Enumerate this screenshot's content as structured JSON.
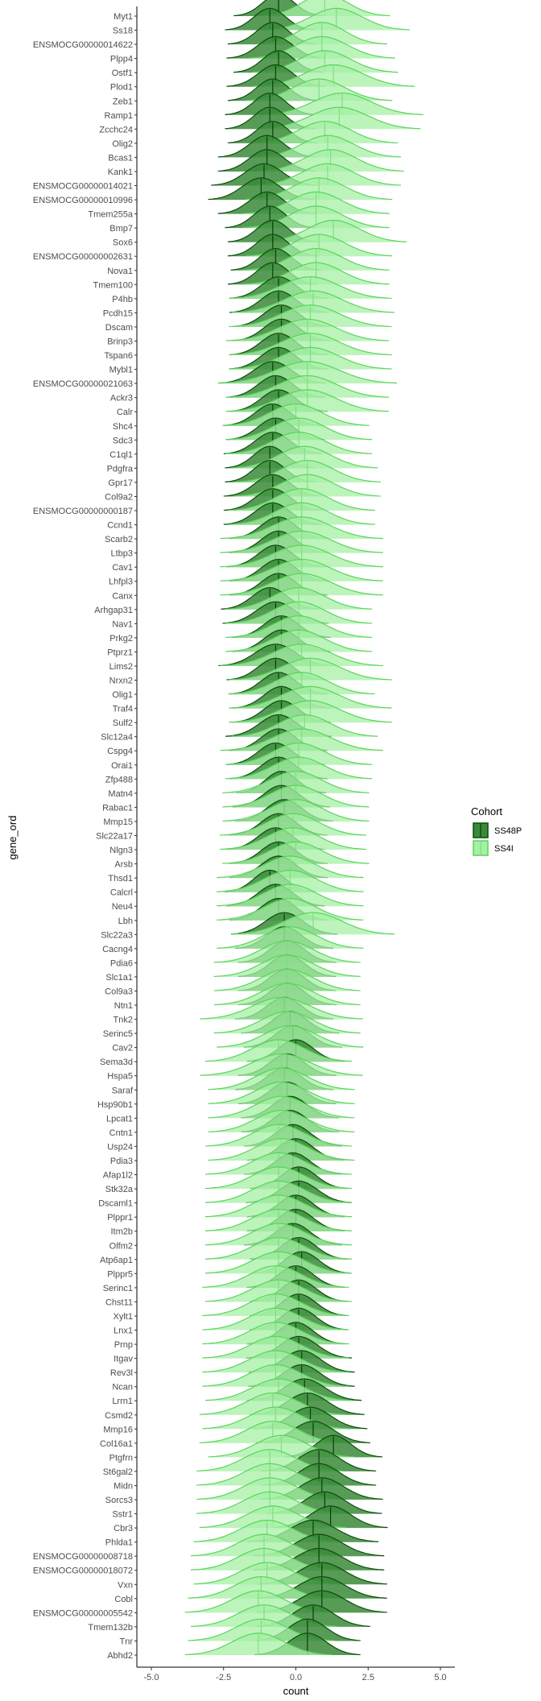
{
  "chart_data": {
    "type": "ridgeline",
    "xlabel": "count",
    "ylabel": "gene_ord",
    "xlim": [
      -5.5,
      5.5
    ],
    "x_ticks": [
      "-5.0",
      "-2.5",
      "0.0",
      "2.5",
      "5.0"
    ],
    "x_tick_values": [
      -5.0,
      -2.5,
      0.0,
      2.5,
      5.0
    ],
    "grid": false,
    "legend": {
      "title": "Cohort",
      "placement": "right",
      "entries": [
        {
          "name": "SS48P",
          "fill": "#3a8a3a",
          "line": "#0b4d0b"
        },
        {
          "name": "SS4I",
          "fill": "#a6f0a6",
          "line": "#5ad45a"
        }
      ]
    },
    "categories": [
      "Myt1",
      "Ss18",
      "ENSMOCG00000014622",
      "Plpp4",
      "Ostf1",
      "Plod1",
      "Zeb1",
      "Ramp1",
      "Zcchc24",
      "Olig2",
      "Bcas1",
      "Kank1",
      "ENSMOCG00000014021",
      "ENSMOCG00000010996",
      "Tmem255a",
      "Bmp7",
      "Sox6",
      "ENSMOCG00000002631",
      "Nova1",
      "Tmem100",
      "P4hb",
      "Pcdh15",
      "Dscam",
      "Brinp3",
      "Tspan6",
      "Mybl1",
      "ENSMOCG00000021063",
      "Ackr3",
      "Calr",
      "Shc4",
      "Sdc3",
      "C1ql1",
      "Pdgfra",
      "Gpr17",
      "Col9a2",
      "ENSMOCG00000000187",
      "Ccnd1",
      "Scarb2",
      "Ltbp3",
      "Cav1",
      "Lhfpl3",
      "Canx",
      "Arhgap31",
      "Nav1",
      "Prkg2",
      "Ptprz1",
      "Lims2",
      "Nrxn2",
      "Olig1",
      "Traf4",
      "Sulf2",
      "Slc12a4",
      "Cspg4",
      "Orai1",
      "Zfp488",
      "Matn4",
      "Rabac1",
      "Mmp15",
      "Slc22a17",
      "Nlgn3",
      "Arsb",
      "Thsd1",
      "Calcrl",
      "Neu4",
      "Lbh",
      "Slc22a3",
      "Cacng4",
      "Pdia6",
      "Slc1a1",
      "Col9a3",
      "Ntn1",
      "Tnk2",
      "Serinc5",
      "Cav2",
      "Sema3d",
      "Hspa5",
      "Saraf",
      "Hsp90b1",
      "Lpcat1",
      "Cntn1",
      "Usp24",
      "Pdia3",
      "Afap1l2",
      "Stk32a",
      "Dscaml1",
      "Plppr1",
      "Itm2b",
      "Olfm2",
      "Atp6ap1",
      "Plppr5",
      "Serinc1",
      "Chst11",
      "Xylt1",
      "Lnx1",
      "Prnp",
      "Itgav",
      "Rev3l",
      "Ncan",
      "Lrrn1",
      "Csmd2",
      "Mmp16",
      "Col16a1",
      "Ptgfrn",
      "St6gal2",
      "Midn",
      "Sorcs3",
      "Sstr1",
      "Cbr3",
      "Phlda1",
      "ENSMOCG00000008718",
      "ENSMOCG00000018072",
      "Vxn",
      "Cobl",
      "ENSMOCG00000005542",
      "Tmem132b",
      "Tnr",
      "Abhd2"
    ],
    "series": [
      {
        "name": "SS48P",
        "means": [
          -0.6,
          -0.9,
          -0.8,
          -0.7,
          -0.6,
          -0.7,
          -0.8,
          -0.9,
          -0.9,
          -0.8,
          -1.0,
          -1.0,
          -1.1,
          -1.2,
          -1.0,
          -0.9,
          -0.8,
          -0.8,
          -0.7,
          -0.8,
          -0.6,
          -0.6,
          -0.5,
          -0.5,
          -0.6,
          -0.6,
          -0.8,
          -0.7,
          -0.6,
          -0.8,
          -0.7,
          -0.8,
          -0.9,
          -0.9,
          -0.8,
          -0.8,
          -0.8,
          -0.6,
          -0.6,
          -0.7,
          -0.6,
          -0.6,
          -0.9,
          -0.7,
          -0.5,
          -0.5,
          -0.7,
          -0.7,
          -0.6,
          -0.5,
          -0.5,
          -0.6,
          -0.6,
          -0.7,
          -0.6,
          -0.5,
          -0.5,
          -0.4,
          -0.6,
          -0.7,
          -0.6,
          -0.6,
          -0.9,
          -0.7,
          -0.6,
          -0.4,
          -0.4,
          -0.3,
          -0.3,
          -0.3,
          -0.3,
          -0.4,
          -0.2,
          -0.1,
          0.0,
          -0.3,
          -0.4,
          -0.3,
          -0.2,
          -0.2,
          -0.1,
          0.0,
          -0.1,
          0.1,
          0.1,
          0.0,
          0.0,
          -0.1,
          0.1,
          0.2,
          0.0,
          0.1,
          0.1,
          0.1,
          0.0,
          0.1,
          0.2,
          0.2,
          0.3,
          0.4,
          0.5,
          0.6,
          1.3,
          0.8,
          0.8,
          0.9,
          1.0,
          1.2,
          0.6,
          0.8,
          0.8,
          0.9,
          0.9,
          0.9,
          0.6,
          0.4,
          0.4
        ],
        "sds": [
          0.55,
          0.55,
          0.55,
          0.6,
          0.55,
          0.6,
          0.55,
          0.55,
          0.55,
          0.55,
          0.6,
          0.6,
          0.65,
          0.65,
          0.6,
          0.55,
          0.55,
          0.55,
          0.55,
          0.55,
          0.6,
          0.6,
          0.6,
          0.6,
          0.6,
          0.6,
          0.65,
          0.6,
          0.6,
          0.6,
          0.6,
          0.6,
          0.55,
          0.55,
          0.6,
          0.6,
          0.6,
          0.6,
          0.6,
          0.6,
          0.6,
          0.6,
          0.6,
          0.65,
          0.6,
          0.6,
          0.7,
          0.6,
          0.6,
          0.6,
          0.6,
          0.65,
          0.6,
          0.6,
          0.6,
          0.55,
          0.6,
          0.6,
          0.6,
          0.6,
          0.6,
          0.6,
          0.55,
          0.6,
          0.6,
          0.65,
          0.6,
          0.6,
          0.6,
          0.6,
          0.6,
          0.6,
          0.6,
          0.6,
          0.6,
          0.6,
          0.6,
          0.6,
          0.6,
          0.6,
          0.6,
          0.6,
          0.6,
          0.6,
          0.65,
          0.6,
          0.6,
          0.6,
          0.6,
          0.6,
          0.6,
          0.6,
          0.6,
          0.6,
          0.6,
          0.65,
          0.65,
          0.65,
          0.7,
          0.7,
          0.7,
          0.7,
          0.6,
          0.7,
          0.7,
          0.75,
          0.7,
          0.7,
          0.8,
          0.8,
          0.8,
          0.8,
          0.8,
          0.8,
          0.7,
          0.65,
          0.65
        ]
      },
      {
        "name": "SS4I",
        "means": [
          1.0,
          1.4,
          0.9,
          0.9,
          1.0,
          1.3,
          0.8,
          1.6,
          1.5,
          1.0,
          1.1,
          1.2,
          1.1,
          0.8,
          0.7,
          0.7,
          1.3,
          0.8,
          0.7,
          0.7,
          0.5,
          0.6,
          0.5,
          0.4,
          0.5,
          0.5,
          0.4,
          0.4,
          0.4,
          0.0,
          0.1,
          0.1,
          0.3,
          0.4,
          0.4,
          0.2,
          0.2,
          0.2,
          0.2,
          0.2,
          0.2,
          0.2,
          0.1,
          0.1,
          0.1,
          0.1,
          0.2,
          0.5,
          0.2,
          0.5,
          0.5,
          0.3,
          0.2,
          0.1,
          0.1,
          0.0,
          0.0,
          0.0,
          -0.1,
          -0.1,
          0.0,
          -0.2,
          -0.2,
          -0.2,
          -0.2,
          0.6,
          -0.2,
          -0.3,
          -0.3,
          -0.3,
          -0.3,
          -0.5,
          -0.3,
          -0.2,
          -0.6,
          -0.5,
          -0.5,
          -0.5,
          -0.5,
          -0.5,
          -0.6,
          -0.5,
          -0.6,
          -0.6,
          -0.6,
          -0.6,
          -0.6,
          -0.6,
          -0.6,
          -0.6,
          -0.7,
          -0.6,
          -0.7,
          -0.7,
          -0.7,
          -0.7,
          -0.7,
          -0.7,
          -0.6,
          -0.8,
          -0.7,
          -0.8,
          -0.5,
          -0.9,
          -0.9,
          -0.9,
          -0.9,
          -0.8,
          -1.0,
          -1.1,
          -1.1,
          -1.0,
          -1.2,
          -1.3,
          -1.1,
          -1.2,
          -1.3
        ],
        "sds": [
          0.8,
          0.9,
          0.8,
          0.9,
          0.9,
          1.0,
          0.9,
          1.0,
          1.0,
          0.9,
          0.9,
          0.9,
          0.9,
          0.9,
          0.9,
          0.9,
          0.9,
          0.9,
          0.9,
          0.9,
          1.0,
          1.0,
          1.0,
          1.0,
          1.0,
          1.0,
          1.1,
          1.0,
          1.0,
          0.9,
          0.9,
          0.9,
          0.9,
          0.9,
          0.9,
          0.9,
          0.9,
          1.0,
          1.0,
          1.0,
          1.0,
          1.0,
          0.9,
          0.9,
          0.9,
          0.9,
          1.0,
          1.0,
          0.9,
          1.0,
          1.0,
          0.9,
          1.0,
          0.9,
          0.9,
          0.9,
          0.9,
          0.9,
          0.9,
          0.9,
          0.9,
          0.9,
          0.9,
          0.9,
          0.9,
          1.0,
          0.9,
          0.9,
          0.9,
          0.9,
          0.9,
          1.0,
          0.9,
          0.9,
          0.9,
          1.0,
          0.9,
          0.9,
          0.9,
          0.9,
          0.9,
          0.9,
          0.9,
          0.9,
          0.9,
          0.9,
          0.9,
          0.9,
          0.9,
          0.9,
          0.9,
          0.9,
          0.9,
          0.9,
          0.9,
          0.9,
          0.9,
          0.9,
          0.9,
          0.9,
          0.9,
          0.9,
          0.9,
          0.9,
          0.9,
          0.9,
          0.9,
          0.9,
          0.9,
          0.9,
          0.9,
          0.9,
          0.9,
          0.9,
          0.9,
          0.9,
          0.9
        ]
      }
    ]
  }
}
